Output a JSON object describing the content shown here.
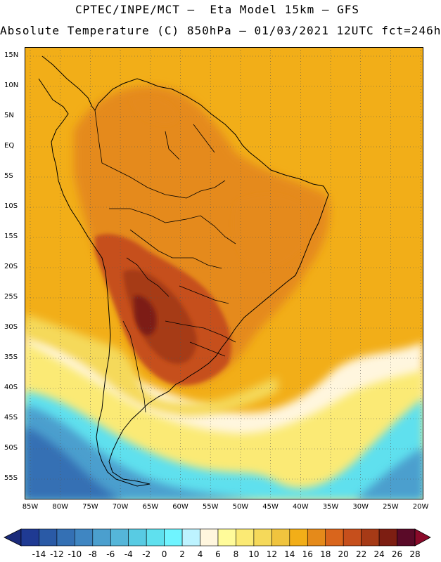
{
  "title_line1": "CPTEC/INPE/MCT –  Eta Model 15km – GFS",
  "title_line2": "Absolute Temperature (C) 850hPa – 01/03/2021 12UTC fct=246h",
  "lat_labels": [
    "15N",
    "10N",
    "5N",
    "EQ",
    "5S",
    "10S",
    "15S",
    "20S",
    "25S",
    "30S",
    "35S",
    "40S",
    "45S",
    "50S",
    "55S"
  ],
  "lon_labels": [
    "85W",
    "80W",
    "75W",
    "70W",
    "65W",
    "60W",
    "55W",
    "50W",
    "45W",
    "40W",
    "35W",
    "30W",
    "25W",
    "20W"
  ],
  "colorbar": {
    "labels": [
      "-14",
      "-12",
      "-10",
      "-8",
      "-6",
      "-4",
      "-2",
      "0",
      "2",
      "4",
      "6",
      "8",
      "10",
      "12",
      "14",
      "16",
      "18",
      "20",
      "22",
      "24",
      "26",
      "28"
    ],
    "colors": [
      "#1f3a93",
      "#2a5aa6",
      "#3470b4",
      "#3f86c2",
      "#4b9fce",
      "#55b6d9",
      "#58cbe3",
      "#5fe0ee",
      "#6ff4ff",
      "#bdf3ff",
      "#fff6de",
      "#fffb9a",
      "#fbea74",
      "#f5d95a",
      "#f0c43e",
      "#f2ae18",
      "#e58a1a",
      "#d9651c",
      "#c64f1c",
      "#a63a16",
      "#7d1e12",
      "#5a0a28"
    ],
    "low_color": "#1a2a7a",
    "high_color": "#8a0a2a"
  },
  "map_colors": {
    "ocean_base": "#f2ae18",
    "warm": "#e58a1a",
    "hot": "#c64f1c",
    "hotter": "#a63a16",
    "hottest": "#7d1e12",
    "mild": "#f5d95a",
    "cool": "#fbea74",
    "cold_pale": "#fff6de",
    "cyan": "#5fe0ee",
    "blue_light": "#4b9fce",
    "blue_dark": "#3470b4",
    "coast": "#000000",
    "grid": "#555555"
  }
}
